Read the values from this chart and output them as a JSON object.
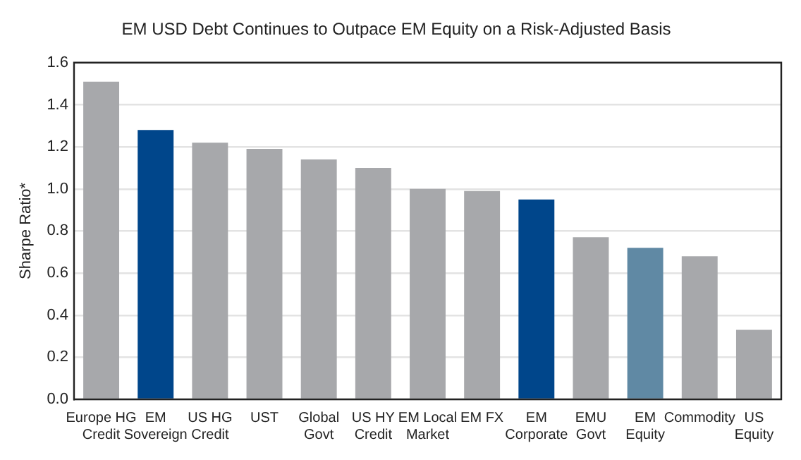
{
  "chart_data": {
    "type": "bar",
    "title": "EM USD Debt Continues to Outpace EM Equity on a Risk-Adjusted Basis",
    "ylabel": "Sharpe Ratio*",
    "categories": [
      "Europe HG\nCredit",
      "EM\nSovereign",
      "US HG\nCredit",
      "UST",
      "Global\nGovt",
      "US HY\nCredit",
      "EM Local\nMarket",
      "EM FX",
      "EM\nCorporate",
      "EMU\nGovt",
      "EM\nEquity",
      "Commodity",
      "US\nEquity"
    ],
    "values": [
      1.51,
      1.28,
      1.22,
      1.19,
      1.14,
      1.1,
      1.0,
      0.99,
      0.95,
      0.77,
      0.72,
      0.68,
      0.33
    ],
    "colors": [
      "#a7a8ab",
      "#00468b",
      "#a7a8ab",
      "#a7a8ab",
      "#a7a8ab",
      "#a7a8ab",
      "#a7a8ab",
      "#a7a8ab",
      "#00468b",
      "#a7a8ab",
      "#6089a4",
      "#a7a8ab",
      "#a7a8ab"
    ],
    "ylim": [
      0,
      1.6
    ],
    "yticks": [
      {
        "value": 0,
        "label": "0.0"
      },
      0.2,
      0.4,
      0.6,
      0.8,
      {
        "value": 1,
        "label": "1.0"
      },
      1.2,
      1.4,
      1.6
    ],
    "grid": "y",
    "legend": false
  }
}
